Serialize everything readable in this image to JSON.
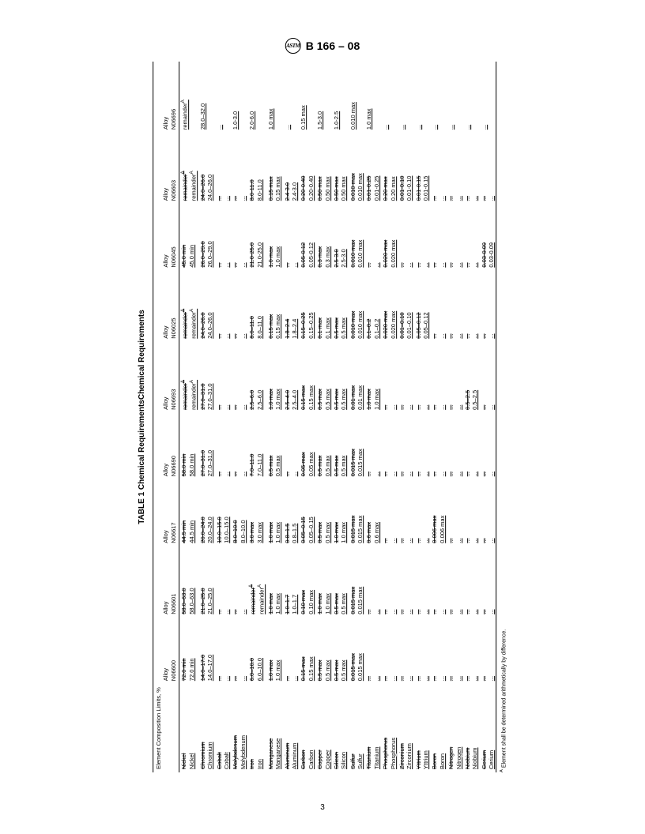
{
  "header": {
    "spec": "B 166 – 08",
    "logo_text": "ASTM"
  },
  "page_number": "3",
  "table": {
    "title": "TABLE 1  Chemical RequirementsChemical Requirements",
    "group_header": "Element Composition Limits, %",
    "alloy_label": "Alloy",
    "alloys": [
      "N06600",
      "N06601",
      "N06617",
      "N06690",
      "N06693",
      "N06025",
      "N06045",
      "N06603",
      "N06696"
    ],
    "footnote_mark": "A",
    "footnote_text": "Element shall be determined arithmetically by difference.",
    "rows": [
      {
        "el_old": "Nickel",
        "el_new": "Nickel",
        "c": [
          {
            "o": "72.0 min",
            "n": "72.0 min"
          },
          {
            "o": "58.0–63.0",
            "n": "58.0–63.0"
          },
          {
            "o": "44.5 min",
            "n": "44.5 min"
          },
          {
            "o": "58.0 min",
            "n": "58.0 min"
          },
          {
            "o": "remainderA",
            "n": "remainderA",
            "sup": true
          },
          {
            "o": "remainderA",
            "n": "remainderA",
            "sup": true
          },
          {
            "o": "45.0 min",
            "n": "45.0 min"
          },
          {
            "o": "remainderA",
            "n": "remainderA",
            "sup": true
          },
          {
            "o": "",
            "n": "remainderA",
            "sup": true
          }
        ]
      },
      {
        "el_old": "Chromium",
        "el_new": "Chromium",
        "c": [
          {
            "o": "14.0–17.0",
            "n": "14.0–17.0"
          },
          {
            "o": "21.0–25.0",
            "n": "21.0–25.0"
          },
          {
            "o": "20.0–24.0",
            "n": "20.0–24.0"
          },
          {
            "o": "27.0–31.0",
            "n": "27.0–31.0"
          },
          {
            "o": "27.0–31.0",
            "n": "27.0–31.0"
          },
          {
            "o": "24.0–26.0",
            "n": "24.0–26.0"
          },
          {
            "o": "26.0–29.0",
            "n": "26.0–29.0"
          },
          {
            "o": "24.0–26.0",
            "n": "24.0–26.0"
          },
          {
            "o": "",
            "n": "28.0–32.0"
          }
        ]
      },
      {
        "el_old": "Cobalt",
        "el_new": "Cobalt",
        "c": [
          {
            "o": "...",
            "n": "..."
          },
          {
            "o": "...",
            "n": "..."
          },
          {
            "o": "10.0–15.0",
            "n": "10.0–15.0"
          },
          {
            "o": "...",
            "n": "..."
          },
          {
            "o": "...",
            "n": "..."
          },
          {
            "o": "...",
            "n": "..."
          },
          {
            "o": "...",
            "n": "..."
          },
          {
            "o": "...",
            "n": "..."
          },
          {
            "o": "",
            "n": "..."
          }
        ]
      },
      {
        "el_old": "Molybdenum",
        "el_new": "Molybdenum",
        "c": [
          {
            "o": "...",
            "n": "..."
          },
          {
            "o": "...",
            "n": "..."
          },
          {
            "o": "8.0–10.0",
            "n": "8.0–10.0"
          },
          {
            "o": "...",
            "n": "..."
          },
          {
            "o": "...",
            "n": "..."
          },
          {
            "o": "...",
            "n": "..."
          },
          {
            "o": "...",
            "n": "..."
          },
          {
            "o": "...",
            "n": "..."
          },
          {
            "o": "",
            "n": "1.0-3.0"
          }
        ]
      },
      {
        "el_old": "Iron",
        "el_new": "Iron",
        "c": [
          {
            "o": "6.0–10.0",
            "n": "6.0–10.0"
          },
          {
            "o": "remainderA",
            "n": "remainderA",
            "sup": true
          },
          {
            "o": "3.0 max",
            "n": "3.0 max"
          },
          {
            "o": "7.0–11.0",
            "n": "7.0–11.0"
          },
          {
            "o": "2.5–6.0",
            "n": "2.5–6.0"
          },
          {
            "o": "8.0–11.0",
            "n": "8.0–11.0"
          },
          {
            "o": "21.0-25.0",
            "n": "21.0-25.0"
          },
          {
            "o": "8.0-11.0",
            "n": "8.0-11.0"
          },
          {
            "o": "",
            "n": "2.0-6.0"
          }
        ]
      },
      {
        "el_old": "Manganese",
        "el_new": "Manganese",
        "c": [
          {
            "o": "1.0 max",
            "n": "1.0 max"
          },
          {
            "o": "1.0 max",
            "n": "1.0 max"
          },
          {
            "o": "1.0 max",
            "n": "1.0 max"
          },
          {
            "o": "0.5 max",
            "n": "0.5 max"
          },
          {
            "o": "1.0 max",
            "n": "1.0 max"
          },
          {
            "o": "0.15 max",
            "n": "0.15 max"
          },
          {
            "o": "1.0 max",
            "n": "1.0 max"
          },
          {
            "o": "0.15 max",
            "n": "0.15 max"
          },
          {
            "o": "",
            "n": "1.0 max"
          }
        ]
      },
      {
        "el_old": "Aluminum",
        "el_new": "Aluminum",
        "c": [
          {
            "o": "...",
            "n": "..."
          },
          {
            "o": "1.0–1.7",
            "n": "1.0–1.7"
          },
          {
            "o": "0.8–1.5",
            "n": "0.8–1.5"
          },
          {
            "o": "...",
            "n": "..."
          },
          {
            "o": "2.5–4.0",
            "n": "2.5–4.0"
          },
          {
            "o": "1.8–2.4",
            "n": "1.8–2.4"
          },
          {
            "o": "...",
            "n": "..."
          },
          {
            "o": "2.4-3.0",
            "n": "2.4-3.0"
          },
          {
            "o": "",
            "n": "..."
          }
        ]
      },
      {
        "el_old": "Carbon",
        "el_new": "Carbon",
        "c": [
          {
            "o": "0.15 max",
            "n": "0.15 max"
          },
          {
            "o": "0.10 max",
            "n": "0.10 max"
          },
          {
            "o": "0.05–0.15",
            "n": "0.05–0.15"
          },
          {
            "o": "0.05 max",
            "n": "0.05 max"
          },
          {
            "o": "0.15 max",
            "n": "0.15 max"
          },
          {
            "o": "0.15–0.25",
            "n": "0.15–0.25"
          },
          {
            "o": "0.05-0.12",
            "n": "0.05-0.12"
          },
          {
            "o": "0.20-0.40",
            "n": "0.20-0.40"
          },
          {
            "o": "",
            "n": "0.15 max"
          }
        ]
      },
      {
        "el_old": "Copper",
        "el_new": "Copper",
        "c": [
          {
            "o": "0.5 max",
            "n": "0.5 max"
          },
          {
            "o": "1.0 max",
            "n": "1.0 max"
          },
          {
            "o": "0.5 max",
            "n": "0.5 max"
          },
          {
            "o": "0.5 max",
            "n": "0.5 max"
          },
          {
            "o": "0.5 max",
            "n": "0.5 max"
          },
          {
            "o": "0.1 max",
            "n": "0.1 max"
          },
          {
            "o": "0.3 max",
            "n": "0.3 max"
          },
          {
            "o": "0.50 max",
            "n": "0.50 max"
          },
          {
            "o": "",
            "n": "1.5-3.0"
          }
        ]
      },
      {
        "el_old": "Silicon",
        "el_new": "Silicon",
        "c": [
          {
            "o": "0.5 max",
            "n": "0.5 max"
          },
          {
            "o": "0.5 max",
            "n": "0.5 max"
          },
          {
            "o": "1.0 max",
            "n": "1.0 max"
          },
          {
            "o": "0.5 max",
            "n": "0.5 max"
          },
          {
            "o": "0.5 max",
            "n": "0.5 max"
          },
          {
            "o": "0.5 max",
            "n": "0.5 max"
          },
          {
            "o": "2.5-3.0",
            "n": "2.5-3.0"
          },
          {
            "o": "0.50 max",
            "n": "0.50 max"
          },
          {
            "o": "",
            "n": "1.0-2.5"
          }
        ]
      },
      {
        "el_old": "Sulfur",
        "el_new": "Sulfur",
        "c": [
          {
            "o": "0.015 max",
            "n": "0.015 max"
          },
          {
            "o": "0.015 max",
            "n": "0.015 max"
          },
          {
            "o": "0.015 max",
            "n": "0.015 max"
          },
          {
            "o": "0.015 max",
            "n": "0.015 max"
          },
          {
            "o": "0.01 max",
            "n": "0.01 max"
          },
          {
            "o": "0.010 max",
            "n": "0.010 max"
          },
          {
            "o": "0.010 max",
            "n": "0.010 max"
          },
          {
            "o": "0.010 max",
            "n": "0.010 max"
          },
          {
            "o": "",
            "n": "0.010 max"
          }
        ]
      },
      {
        "el_old": "Titanium",
        "el_new": "Titanium",
        "c": [
          {
            "o": "...",
            "n": "..."
          },
          {
            "o": "...",
            "n": "..."
          },
          {
            "o": "0.6 max",
            "n": "0.6 max"
          },
          {
            "o": "...",
            "n": "..."
          },
          {
            "o": "1.0 max",
            "n": "1.0 max"
          },
          {
            "o": "0.1–0.2",
            "n": "0.1–0.2"
          },
          {
            "o": "...",
            "n": "..."
          },
          {
            "o": "0.01-0.25",
            "n": "0.01-0.25"
          },
          {
            "o": "",
            "n": "1.0 max"
          }
        ]
      },
      {
        "el_old": "Phosphorus",
        "el_new": "Phosphorus",
        "c": [
          {
            "o": "...",
            "n": "..."
          },
          {
            "o": "...",
            "n": "..."
          },
          {
            "o": "...",
            "n": "..."
          },
          {
            "o": "...",
            "n": "..."
          },
          {
            "o": "...",
            "n": "..."
          },
          {
            "o": "0.020 max",
            "n": "0.020 max"
          },
          {
            "o": "0.020 max",
            "n": "0.020 max"
          },
          {
            "o": "0.20 max",
            "n": "0.20 max"
          },
          {
            "o": "",
            "n": "..."
          }
        ]
      },
      {
        "el_old": "Zirconium",
        "el_new": "Zirconium",
        "c": [
          {
            "o": "...",
            "n": "..."
          },
          {
            "o": "...",
            "n": "..."
          },
          {
            "o": "...",
            "n": "..."
          },
          {
            "o": "...",
            "n": "..."
          },
          {
            "o": "...",
            "n": "..."
          },
          {
            "o": "0.01–0.10",
            "n": "0.01–0.10"
          },
          {
            "o": "...",
            "n": "..."
          },
          {
            "o": "0.01-0.10",
            "n": "0.01-0.10"
          },
          {
            "o": "",
            "n": "..."
          }
        ]
      },
      {
        "el_old": "Yttrium",
        "el_new": "Yttrium",
        "c": [
          {
            "o": "...",
            "n": "..."
          },
          {
            "o": "...",
            "n": "..."
          },
          {
            "o": "...",
            "n": "..."
          },
          {
            "o": "...",
            "n": "..."
          },
          {
            "o": "...",
            "n": "..."
          },
          {
            "o": "0.05–0.12",
            "n": "0.05–0.12"
          },
          {
            "o": "...",
            "n": "..."
          },
          {
            "o": "0.01-0.15",
            "n": "0.01-0.15"
          },
          {
            "o": "",
            "n": "..."
          }
        ]
      },
      {
        "el_old": "Boron",
        "el_new": "Boron",
        "c": [
          {
            "o": "...",
            "n": "..."
          },
          {
            "o": "...",
            "n": "..."
          },
          {
            "o": "0.006 max",
            "n": "0.006 max"
          },
          {
            "o": "...",
            "n": "..."
          },
          {
            "o": "...",
            "n": "..."
          },
          {
            "o": "...",
            "n": "..."
          },
          {
            "o": "...",
            "n": "..."
          },
          {
            "o": "...",
            "n": "..."
          },
          {
            "o": "",
            "n": "..."
          }
        ]
      },
      {
        "el_old": "Nitrogen",
        "el_new": "Nitrogen",
        "c": [
          {
            "o": "...",
            "n": "..."
          },
          {
            "o": "...",
            "n": "..."
          },
          {
            "o": "...",
            "n": "..."
          },
          {
            "o": "...",
            "n": "..."
          },
          {
            "o": "...",
            "n": "..."
          },
          {
            "o": "...",
            "n": "..."
          },
          {
            "o": "...",
            "n": "..."
          },
          {
            "o": "...",
            "n": "..."
          },
          {
            "o": "",
            "n": "..."
          }
        ]
      },
      {
        "el_old": "Niobium",
        "el_new": "Niobium",
        "c": [
          {
            "o": "...",
            "n": "..."
          },
          {
            "o": "...",
            "n": "..."
          },
          {
            "o": "...",
            "n": "..."
          },
          {
            "o": "...",
            "n": "..."
          },
          {
            "o": "0.5–2.5",
            "n": "0.5–2.5"
          },
          {
            "o": "...",
            "n": "..."
          },
          {
            "o": "...",
            "n": "..."
          },
          {
            "o": "...",
            "n": "..."
          },
          {
            "o": "",
            "n": "..."
          }
        ]
      },
      {
        "el_old": "Cerium",
        "el_new": "Cerium",
        "c": [
          {
            "o": "...",
            "n": "..."
          },
          {
            "o": "...",
            "n": "..."
          },
          {
            "o": "...",
            "n": "..."
          },
          {
            "o": "...",
            "n": "..."
          },
          {
            "o": "...",
            "n": "..."
          },
          {
            "o": "...",
            "n": "..."
          },
          {
            "o": "0.03-0.09",
            "n": "0.03-0.09"
          },
          {
            "o": "...",
            "n": "..."
          },
          {
            "o": "",
            "n": "..."
          }
        ]
      }
    ]
  }
}
